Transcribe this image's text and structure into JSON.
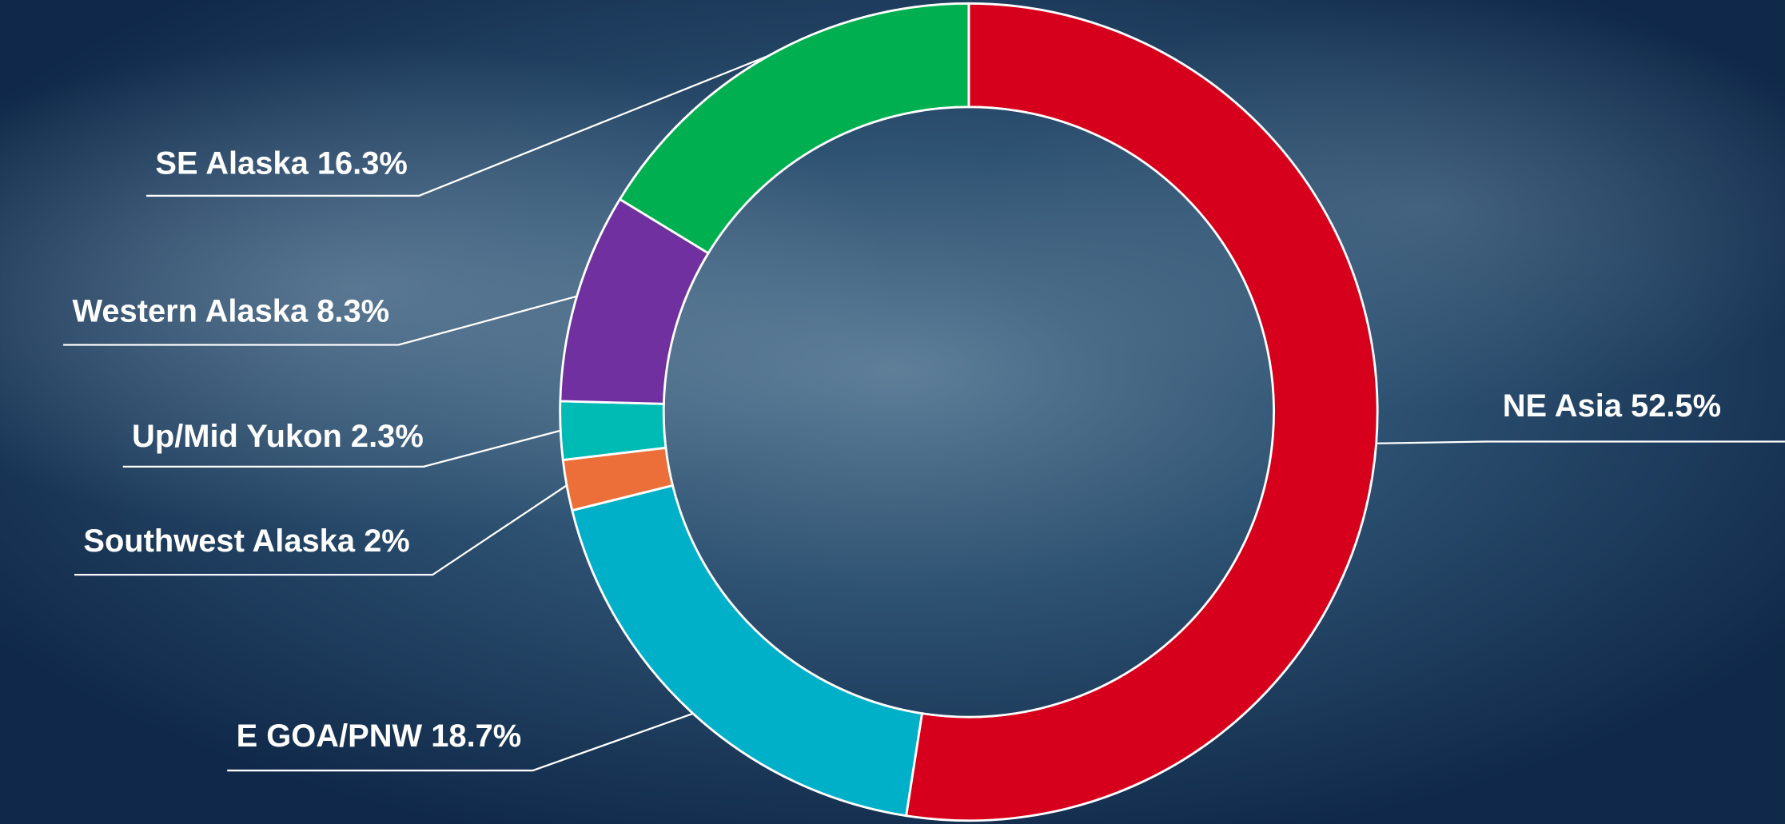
{
  "chart_data": {
    "type": "donut",
    "categories": [
      "NE Asia",
      "E GOA/PNW",
      "Southwest Alaska",
      "Up/Mid Yukon",
      "Western Alaska",
      "SE Alaska"
    ],
    "values": [
      52.5,
      18.7,
      2,
      2.3,
      8.3,
      16.3
    ],
    "value_labels": [
      "52.5%",
      "18.7%",
      "2%",
      "2.3%",
      "8.3%",
      "16.3%"
    ],
    "colors": [
      "#d7001c",
      "#00b0c8",
      "#ec6f3a",
      "#00bab4",
      "#7030a0",
      "#00b050"
    ]
  }
}
